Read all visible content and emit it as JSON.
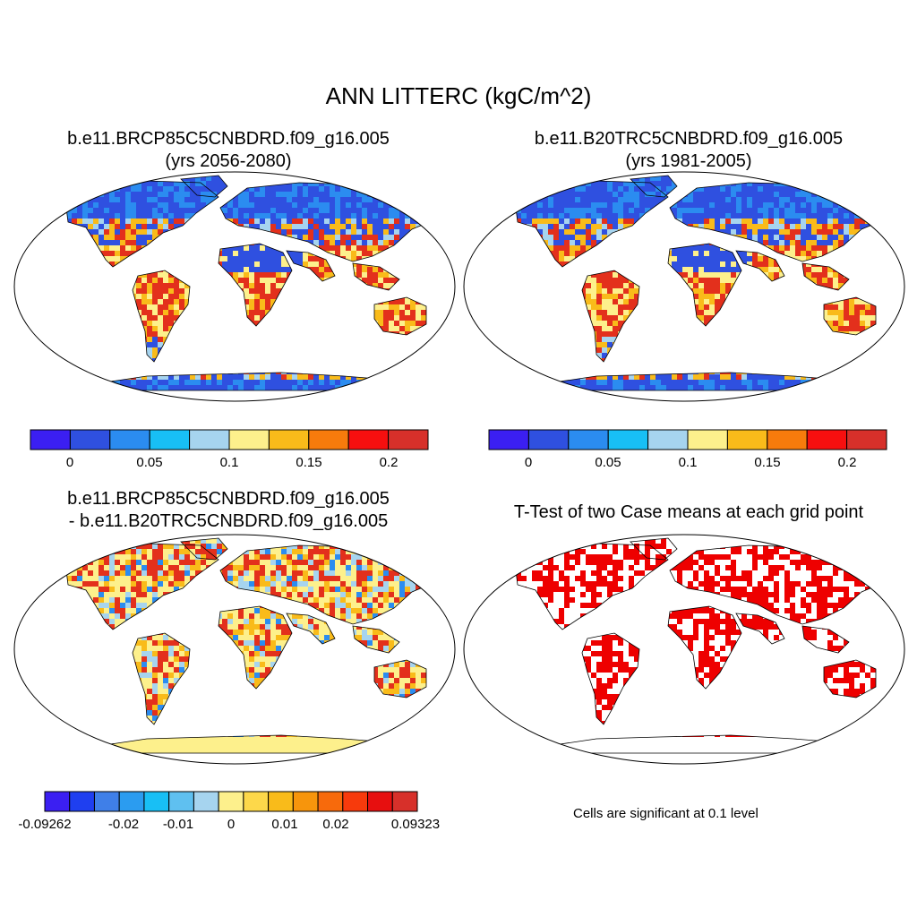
{
  "main_title": "ANN LITTERC (kgC/m^2)",
  "panels": [
    {
      "title_line1": "b.e11.BRCP85C5CNBDRD.f09_g16.005",
      "title_line2": "(yrs 2056-2080)",
      "colorbar": {
        "colors": [
          "#3b1ff2",
          "#2f50e0",
          "#2b8cf0",
          "#18bff5",
          "#a6d4ef",
          "#fdf08c",
          "#f9bb1a",
          "#f77b0c",
          "#f70f0f",
          "#d7302a"
        ],
        "labels": [
          "0",
          "0.05",
          "0.1",
          "0.15",
          "0.2"
        ]
      }
    },
    {
      "title_line1": "b.e11.B20TRC5CNBDRD.f09_g16.005",
      "title_line2": "(yrs 1981-2005)",
      "colorbar": {
        "colors": [
          "#3b1ff2",
          "#2f50e0",
          "#2b8cf0",
          "#18bff5",
          "#a6d4ef",
          "#fdf08c",
          "#f9bb1a",
          "#f77b0c",
          "#f70f0f",
          "#d7302a"
        ],
        "labels": [
          "0",
          "0.05",
          "0.1",
          "0.15",
          "0.2"
        ]
      }
    },
    {
      "title_line1": "b.e11.BRCP85C5CNBDRD.f09_g16.005",
      "title_line2": "- b.e11.B20TRC5CNBDRD.f09_g16.005",
      "colorbar": {
        "colors": [
          "#3b1ff2",
          "#1f3ff0",
          "#3f7fe8",
          "#2b9cf0",
          "#18bff5",
          "#5fc0f0",
          "#a6d4ef",
          "#fdf08c",
          "#fdd84a",
          "#f9bb1a",
          "#f7950c",
          "#f76a0c",
          "#f73a0c",
          "#e70f0f",
          "#d7302a"
        ],
        "labels": [
          "-0.09262",
          "-0.02",
          "-0.01",
          "0",
          "0.01",
          "0.02",
          "0.09323"
        ]
      }
    },
    {
      "title_line1": "T-Test of two Case means at each grid point",
      "note": "Cells are significant at 0.1 level"
    }
  ],
  "map_colors": {
    "ocean": "#ffffff",
    "land_low": "#2f50e0",
    "land_mid": "#2b8cf0",
    "land_pale": "#a6d4ef",
    "land_yellow": "#fdf08c",
    "land_orange": "#f9bb1a",
    "land_red": "#e3301c",
    "diff_base": "#fdf08c",
    "significant": "#ee0000",
    "outline": "#000000"
  }
}
